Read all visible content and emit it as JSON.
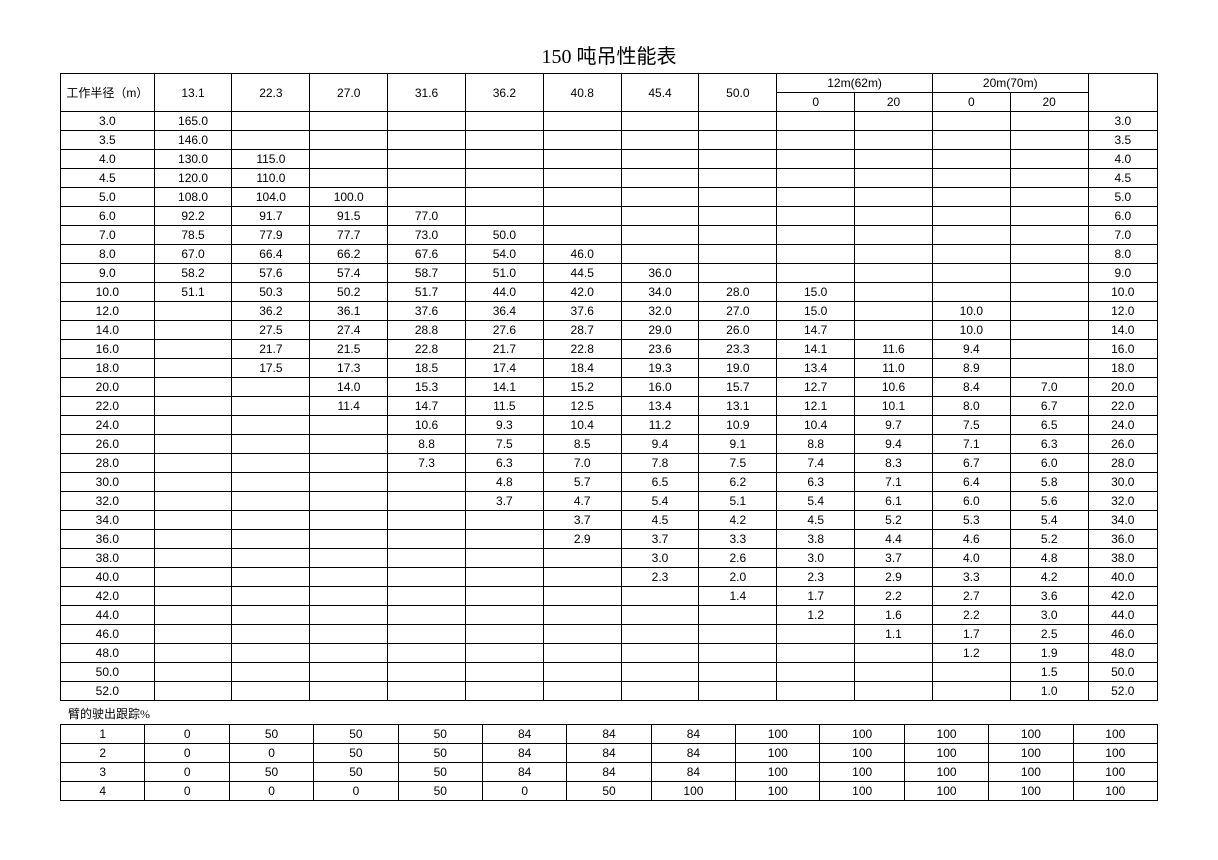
{
  "title": "150 吨吊性能表",
  "header_row1_label": "工作半径（m）",
  "boom_lengths": [
    "13.1",
    "22.3",
    "27.0",
    "31.6",
    "36.2",
    "40.8",
    "45.4",
    "50.0"
  ],
  "group_12m": "12m(62m)",
  "group_20m": "20m(70m)",
  "sub_0": "0",
  "sub_20": "20",
  "rows": [
    {
      "r": "3.0",
      "v": [
        "165.0",
        "",
        "",
        "",
        "",
        "",
        "",
        "",
        "",
        "",
        "",
        ""
      ],
      "r2": "3.0"
    },
    {
      "r": "3.5",
      "v": [
        "146.0",
        "",
        "",
        "",
        "",
        "",
        "",
        "",
        "",
        "",
        "",
        ""
      ],
      "r2": "3.5"
    },
    {
      "r": "4.0",
      "v": [
        "130.0",
        "115.0",
        "",
        "",
        "",
        "",
        "",
        "",
        "",
        "",
        "",
        ""
      ],
      "r2": "4.0"
    },
    {
      "r": "4.5",
      "v": [
        "120.0",
        "110.0",
        "",
        "",
        "",
        "",
        "",
        "",
        "",
        "",
        "",
        ""
      ],
      "r2": "4.5"
    },
    {
      "r": "5.0",
      "v": [
        "108.0",
        "104.0",
        "100.0",
        "",
        "",
        "",
        "",
        "",
        "",
        "",
        "",
        ""
      ],
      "r2": "5.0"
    },
    {
      "r": "6.0",
      "v": [
        "92.2",
        "91.7",
        "91.5",
        "77.0",
        "",
        "",
        "",
        "",
        "",
        "",
        "",
        ""
      ],
      "r2": "6.0"
    },
    {
      "r": "7.0",
      "v": [
        "78.5",
        "77.9",
        "77.7",
        "73.0",
        "50.0",
        "",
        "",
        "",
        "",
        "",
        "",
        ""
      ],
      "r2": "7.0"
    },
    {
      "r": "8.0",
      "v": [
        "67.0",
        "66.4",
        "66.2",
        "67.6",
        "54.0",
        "46.0",
        "",
        "",
        "",
        "",
        "",
        ""
      ],
      "r2": "8.0"
    },
    {
      "r": "9.0",
      "v": [
        "58.2",
        "57.6",
        "57.4",
        "58.7",
        "51.0",
        "44.5",
        "36.0",
        "",
        "",
        "",
        "",
        ""
      ],
      "r2": "9.0"
    },
    {
      "r": "10.0",
      "v": [
        "51.1",
        "50.3",
        "50.2",
        "51.7",
        "44.0",
        "42.0",
        "34.0",
        "28.0",
        "15.0",
        "",
        "",
        ""
      ],
      "r2": "10.0"
    },
    {
      "r": "12.0",
      "v": [
        "",
        "36.2",
        "36.1",
        "37.6",
        "36.4",
        "37.6",
        "32.0",
        "27.0",
        "15.0",
        "",
        "10.0",
        ""
      ],
      "r2": "12.0"
    },
    {
      "r": "14.0",
      "v": [
        "",
        "27.5",
        "27.4",
        "28.8",
        "27.6",
        "28.7",
        "29.0",
        "26.0",
        "14.7",
        "",
        "10.0",
        ""
      ],
      "r2": "14.0"
    },
    {
      "r": "16.0",
      "v": [
        "",
        "21.7",
        "21.5",
        "22.8",
        "21.7",
        "22.8",
        "23.6",
        "23.3",
        "14.1",
        "11.6",
        "9.4",
        ""
      ],
      "r2": "16.0"
    },
    {
      "r": "18.0",
      "v": [
        "",
        "17.5",
        "17.3",
        "18.5",
        "17.4",
        "18.4",
        "19.3",
        "19.0",
        "13.4",
        "11.0",
        "8.9",
        ""
      ],
      "r2": "18.0"
    },
    {
      "r": "20.0",
      "v": [
        "",
        "",
        "14.0",
        "15.3",
        "14.1",
        "15.2",
        "16.0",
        "15.7",
        "12.7",
        "10.6",
        "8.4",
        "7.0"
      ],
      "r2": "20.0"
    },
    {
      "r": "22.0",
      "v": [
        "",
        "",
        "11.4",
        "14.7",
        "11.5",
        "12.5",
        "13.4",
        "13.1",
        "12.1",
        "10.1",
        "8.0",
        "6.7"
      ],
      "r2": "22.0"
    },
    {
      "r": "24.0",
      "v": [
        "",
        "",
        "",
        "10.6",
        "9.3",
        "10.4",
        "11.2",
        "10.9",
        "10.4",
        "9.7",
        "7.5",
        "6.5"
      ],
      "r2": "24.0"
    },
    {
      "r": "26.0",
      "v": [
        "",
        "",
        "",
        "8.8",
        "7.5",
        "8.5",
        "9.4",
        "9.1",
        "8.8",
        "9.4",
        "7.1",
        "6.3"
      ],
      "r2": "26.0"
    },
    {
      "r": "28.0",
      "v": [
        "",
        "",
        "",
        "7.3",
        "6.3",
        "7.0",
        "7.8",
        "7.5",
        "7.4",
        "8.3",
        "6.7",
        "6.0"
      ],
      "r2": "28.0"
    },
    {
      "r": "30.0",
      "v": [
        "",
        "",
        "",
        "",
        "4.8",
        "5.7",
        "6.5",
        "6.2",
        "6.3",
        "7.1",
        "6.4",
        "5.8"
      ],
      "r2": "30.0"
    },
    {
      "r": "32.0",
      "v": [
        "",
        "",
        "",
        "",
        "3.7",
        "4.7",
        "5.4",
        "5.1",
        "5.4",
        "6.1",
        "6.0",
        "5.6"
      ],
      "r2": "32.0"
    },
    {
      "r": "34.0",
      "v": [
        "",
        "",
        "",
        "",
        "",
        "3.7",
        "4.5",
        "4.2",
        "4.5",
        "5.2",
        "5.3",
        "5.4"
      ],
      "r2": "34.0"
    },
    {
      "r": "36.0",
      "v": [
        "",
        "",
        "",
        "",
        "",
        "2.9",
        "3.7",
        "3.3",
        "3.8",
        "4.4",
        "4.6",
        "5.2"
      ],
      "r2": "36.0"
    },
    {
      "r": "38.0",
      "v": [
        "",
        "",
        "",
        "",
        "",
        "",
        "3.0",
        "2.6",
        "3.0",
        "3.7",
        "4.0",
        "4.8"
      ],
      "r2": "38.0"
    },
    {
      "r": "40.0",
      "v": [
        "",
        "",
        "",
        "",
        "",
        "",
        "2.3",
        "2.0",
        "2.3",
        "2.9",
        "3.3",
        "4.2"
      ],
      "r2": "40.0"
    },
    {
      "r": "42.0",
      "v": [
        "",
        "",
        "",
        "",
        "",
        "",
        "",
        "1.4",
        "1.7",
        "2.2",
        "2.7",
        "3.6"
      ],
      "r2": "42.0"
    },
    {
      "r": "44.0",
      "v": [
        "",
        "",
        "",
        "",
        "",
        "",
        "",
        "",
        "1.2",
        "1.6",
        "2.2",
        "3.0"
      ],
      "r2": "44.0"
    },
    {
      "r": "46.0",
      "v": [
        "",
        "",
        "",
        "",
        "",
        "",
        "",
        "",
        "",
        "1.1",
        "1.7",
        "2.5"
      ],
      "r2": "46.0"
    },
    {
      "r": "48.0",
      "v": [
        "",
        "",
        "",
        "",
        "",
        "",
        "",
        "",
        "",
        "",
        "1.2",
        "1.9"
      ],
      "r2": "48.0"
    },
    {
      "r": "50.0",
      "v": [
        "",
        "",
        "",
        "",
        "",
        "",
        "",
        "",
        "",
        "",
        "",
        "1.5"
      ],
      "r2": "50.0"
    },
    {
      "r": "52.0",
      "v": [
        "",
        "",
        "",
        "",
        "",
        "",
        "",
        "",
        "",
        "",
        "",
        "1.0"
      ],
      "r2": "52.0"
    }
  ],
  "ext_title": "臂的驶出跟踪%",
  "ext_rows": [
    {
      "n": "1",
      "v": [
        "0",
        "50",
        "50",
        "50",
        "84",
        "84",
        "84",
        "100",
        "100",
        "100",
        "100",
        "100"
      ]
    },
    {
      "n": "2",
      "v": [
        "0",
        "0",
        "50",
        "50",
        "84",
        "84",
        "84",
        "100",
        "100",
        "100",
        "100",
        "100"
      ]
    },
    {
      "n": "3",
      "v": [
        "0",
        "50",
        "50",
        "50",
        "84",
        "84",
        "84",
        "100",
        "100",
        "100",
        "100",
        "100"
      ]
    },
    {
      "n": "4",
      "v": [
        "0",
        "0",
        "0",
        "50",
        "0",
        "50",
        "100",
        "100",
        "100",
        "100",
        "100",
        "100"
      ]
    }
  ]
}
